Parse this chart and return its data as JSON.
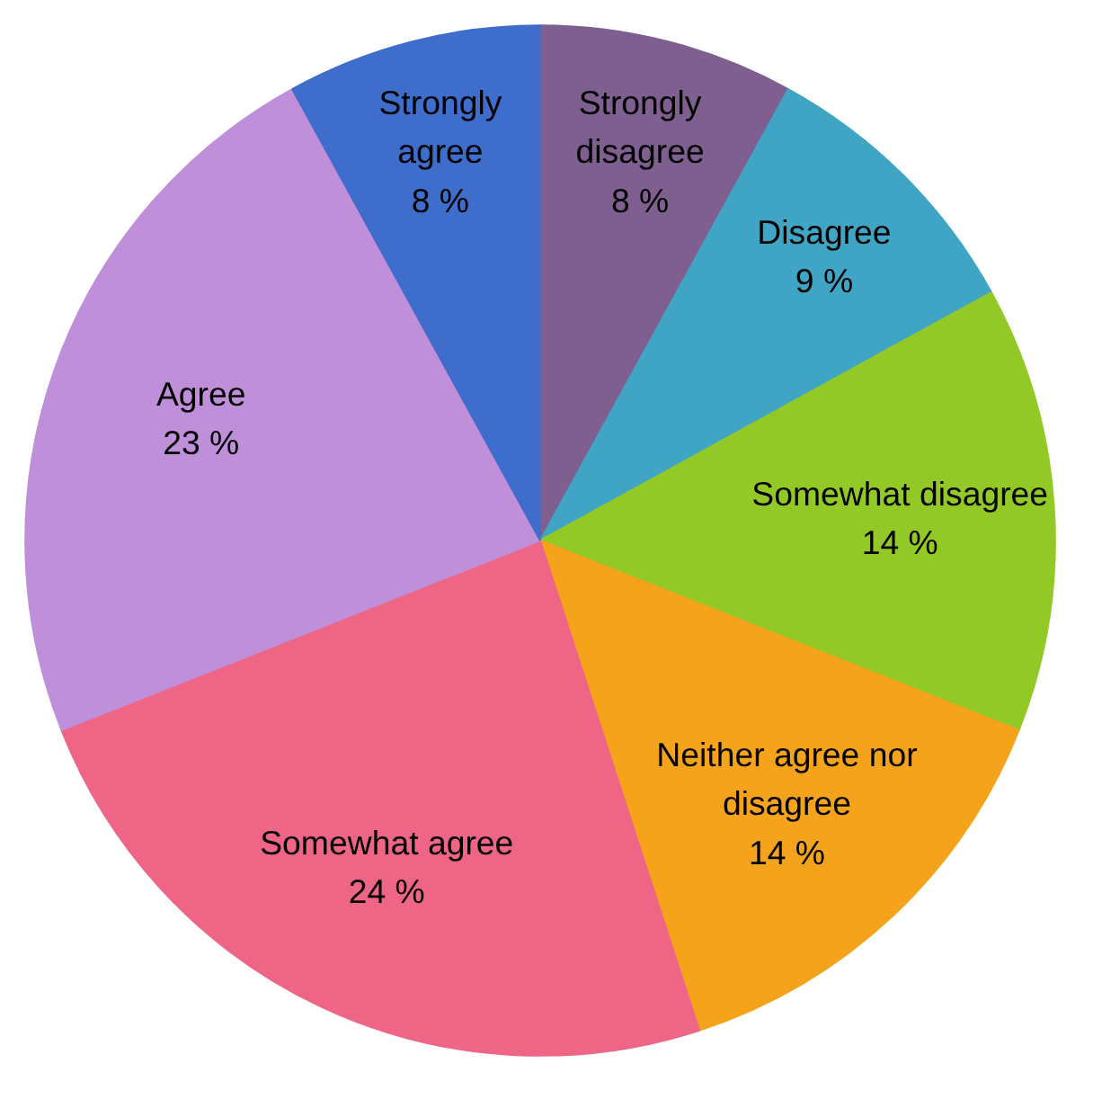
{
  "chart_data": {
    "type": "pie",
    "categories": [
      "Strongly disagree",
      "Disagree",
      "Somewhat disagree",
      "Neither agree nor disagree",
      "Somewhat agree",
      "Agree",
      "Strongly agree"
    ],
    "values": [
      8,
      9,
      14,
      14,
      24,
      23,
      8
    ],
    "value_labels": [
      "8 %",
      "9 %",
      "14 %",
      "14 %",
      "24 %",
      "23 %",
      "8 %"
    ],
    "colors": [
      "#7e5f8f",
      "#40a5c4",
      "#93c927",
      "#f4a31b",
      "#ee6586",
      "#bf8fda",
      "#3e6dcc"
    ]
  }
}
